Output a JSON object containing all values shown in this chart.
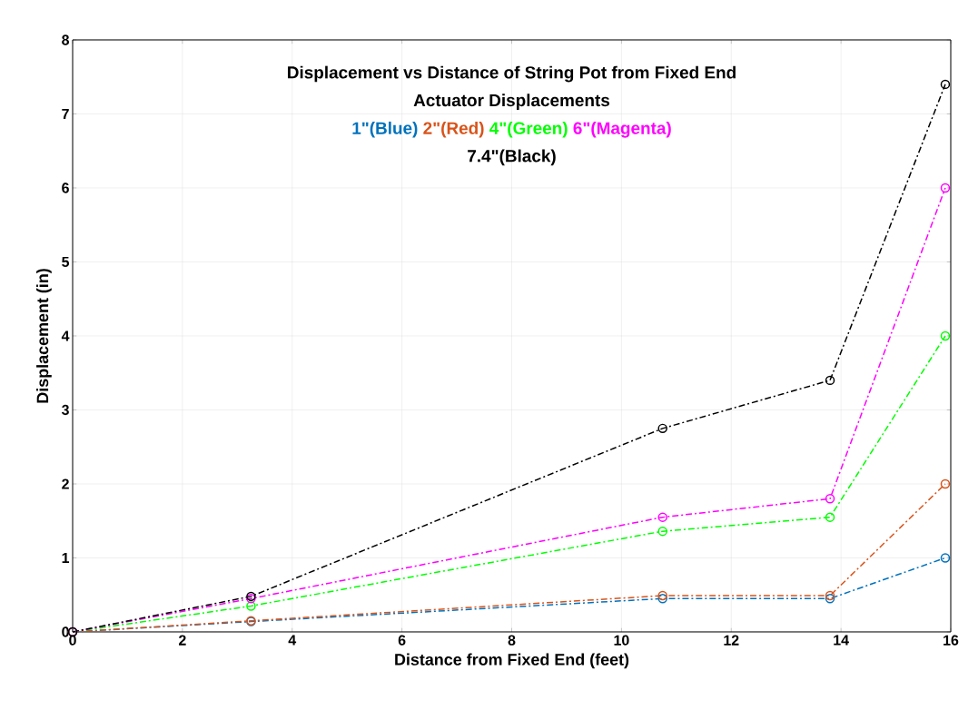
{
  "chart_data": {
    "type": "line",
    "title": "Displacement vs Distance of String Pot from Fixed End",
    "subtitle": "Actuator Displacements",
    "xlabel": "Distance from Fixed End (feet)",
    "ylabel": "Displacement (in)",
    "x": [
      0,
      3.25,
      10.75,
      13.8,
      15.9
    ],
    "series": [
      {
        "name": "1\"(Blue)",
        "color": "#0072bd",
        "values": [
          0,
          0.14,
          0.45,
          0.45,
          1.0
        ]
      },
      {
        "name": "2\"(Red)",
        "color": "#d95319",
        "values": [
          0,
          0.15,
          0.49,
          0.49,
          2.0
        ]
      },
      {
        "name": "4\"(Green)",
        "color": "#00ff00",
        "values": [
          0,
          0.35,
          1.36,
          1.55,
          4.0
        ]
      },
      {
        "name": "6\"(Magenta)",
        "color": "#ff00ff",
        "values": [
          0,
          0.45,
          1.55,
          1.8,
          6.0
        ]
      },
      {
        "name": "7.4\"(Black)",
        "color": "#000000",
        "values": [
          0,
          0.48,
          2.75,
          3.4,
          7.4
        ]
      }
    ],
    "xlim": [
      0,
      16
    ],
    "ylim": [
      0,
      8
    ],
    "xticks": [
      0,
      2,
      4,
      6,
      8,
      10,
      12,
      14,
      16
    ],
    "yticks": [
      0,
      1,
      2,
      3,
      4,
      5,
      6,
      7,
      8
    ],
    "grid": true,
    "marker": "circle",
    "line_style": "dashed"
  }
}
